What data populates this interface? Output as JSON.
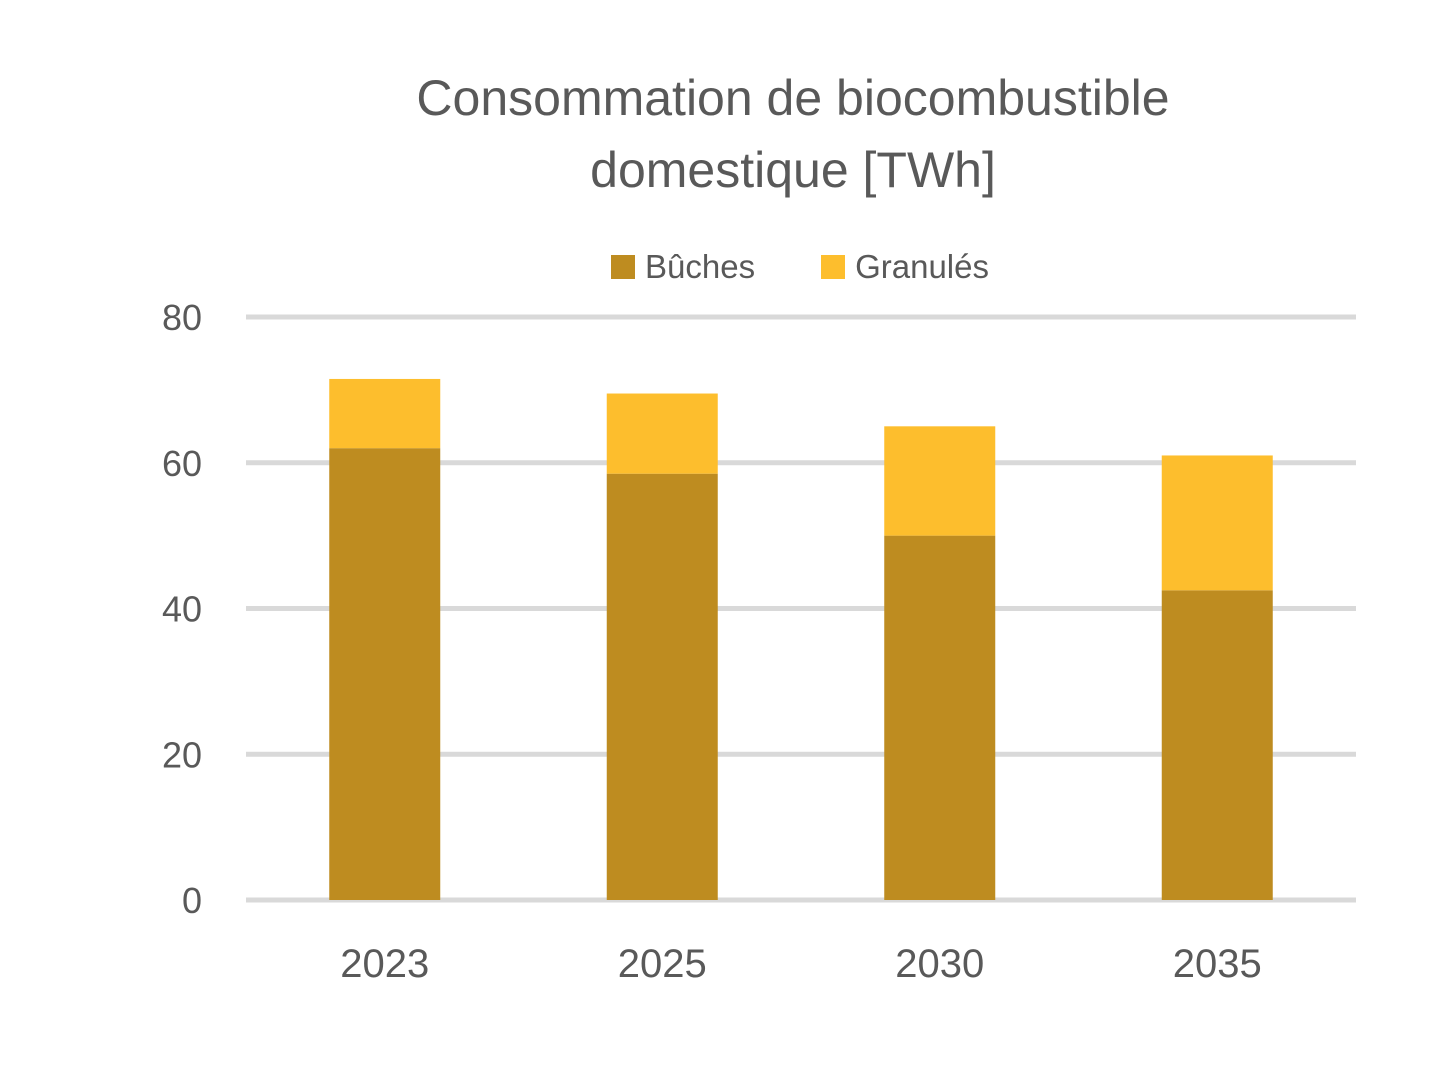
{
  "chart_data": {
    "type": "bar",
    "stacked": true,
    "title_lines": [
      "Consommation de biocombustible",
      "domestique [TWh]"
    ],
    "categories": [
      "2023",
      "2025",
      "2030",
      "2035"
    ],
    "series": [
      {
        "name": "Bûches",
        "values": [
          62,
          58.5,
          50,
          42.5
        ],
        "color": "#BE8C20"
      },
      {
        "name": "Granulés",
        "values": [
          9.5,
          11,
          15,
          18.5
        ],
        "color": "#FDBE2D"
      }
    ],
    "y_ticks": [
      0,
      20,
      40,
      60,
      80
    ],
    "ylim": [
      0,
      80
    ],
    "grid": true,
    "legend_position": "top",
    "grid_color": "#D9D9D9",
    "text_color": "#595959"
  }
}
